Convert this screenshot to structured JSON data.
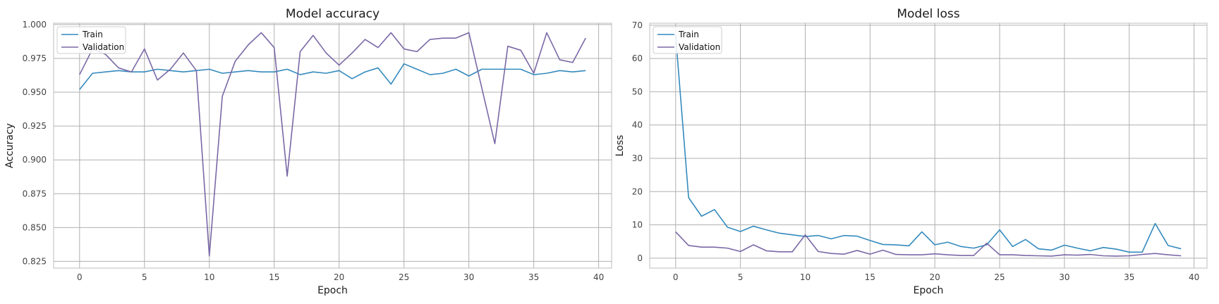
{
  "chart_data": [
    {
      "type": "line",
      "title": "Model accuracy",
      "xlabel": "Epoch",
      "ylabel": "Accuracy",
      "xlim": [
        -2,
        41
      ],
      "ylim": [
        0.82,
        1.001
      ],
      "xticks": [
        0,
        5,
        10,
        15,
        20,
        25,
        30,
        35,
        40
      ],
      "xtick_labels": [
        "0",
        "5",
        "10",
        "15",
        "20",
        "25",
        "30",
        "35",
        "40"
      ],
      "yticks": [
        0.825,
        0.85,
        0.875,
        0.9,
        0.925,
        0.95,
        0.975,
        1.0
      ],
      "ytick_labels": [
        "0.825",
        "0.850",
        "0.875",
        "0.900",
        "0.925",
        "0.950",
        "0.975",
        "1.000"
      ],
      "grid": true,
      "legend_position": "top-left",
      "series": [
        {
          "name": "Train",
          "color": "#348abd",
          "x": [
            0,
            1,
            2,
            3,
            4,
            5,
            6,
            7,
            8,
            9,
            10,
            11,
            12,
            13,
            14,
            15,
            16,
            17,
            18,
            19,
            20,
            21,
            22,
            23,
            24,
            25,
            26,
            27,
            28,
            29,
            30,
            31,
            32,
            33,
            34,
            35,
            36,
            37,
            38,
            39
          ],
          "values": [
            0.952,
            0.964,
            0.965,
            0.966,
            0.965,
            0.965,
            0.967,
            0.966,
            0.965,
            0.966,
            0.967,
            0.964,
            0.965,
            0.966,
            0.965,
            0.965,
            0.967,
            0.963,
            0.965,
            0.964,
            0.966,
            0.96,
            0.965,
            0.968,
            0.956,
            0.971,
            0.967,
            0.963,
            0.964,
            0.967,
            0.962,
            0.967,
            0.967,
            0.967,
            0.967,
            0.963,
            0.964,
            0.966,
            0.965,
            0.966
          ]
        },
        {
          "name": "Validation",
          "color": "#7a68a6",
          "x": [
            0,
            1,
            2,
            3,
            4,
            5,
            6,
            7,
            8,
            9,
            10,
            11,
            12,
            13,
            14,
            15,
            16,
            17,
            18,
            19,
            20,
            21,
            22,
            23,
            24,
            25,
            26,
            27,
            28,
            29,
            30,
            31,
            32,
            33,
            34,
            35,
            36,
            37,
            38,
            39
          ],
          "values": [
            0.963,
            0.982,
            0.978,
            0.968,
            0.965,
            0.982,
            0.959,
            0.967,
            0.979,
            0.966,
            0.829,
            0.947,
            0.973,
            0.985,
            0.994,
            0.983,
            0.888,
            0.98,
            0.992,
            0.979,
            0.97,
            0.979,
            0.989,
            0.983,
            0.994,
            0.982,
            0.98,
            0.989,
            0.99,
            0.99,
            0.994,
            0.953,
            0.912,
            0.984,
            0.981,
            0.964,
            0.994,
            0.974,
            0.972,
            0.99
          ]
        }
      ]
    },
    {
      "type": "line",
      "title": "Model loss",
      "xlabel": "Epoch",
      "ylabel": "Loss",
      "xlim": [
        -2,
        41
      ],
      "ylim": [
        -3,
        70.6
      ],
      "xticks": [
        0,
        5,
        10,
        15,
        20,
        25,
        30,
        35,
        40
      ],
      "xtick_labels": [
        "0",
        "5",
        "10",
        "15",
        "20",
        "25",
        "30",
        "35",
        "40"
      ],
      "yticks": [
        0,
        10,
        20,
        30,
        40,
        50,
        60,
        70
      ],
      "ytick_labels": [
        "0",
        "10",
        "20",
        "30",
        "40",
        "50",
        "60",
        "70"
      ],
      "grid": true,
      "legend_position": "top-left",
      "series": [
        {
          "name": "Train",
          "color": "#348abd",
          "x": [
            0,
            1,
            2,
            3,
            4,
            5,
            6,
            7,
            8,
            9,
            10,
            11,
            12,
            13,
            14,
            15,
            16,
            17,
            18,
            19,
            20,
            21,
            22,
            23,
            24,
            25,
            26,
            27,
            28,
            29,
            30,
            31,
            32,
            33,
            34,
            35,
            36,
            37,
            38,
            39
          ],
          "values": [
            67.0,
            18.2,
            12.6,
            14.6,
            9.3,
            8.0,
            9.6,
            8.5,
            7.5,
            7.0,
            6.5,
            6.8,
            5.8,
            6.8,
            6.6,
            5.3,
            4.1,
            4.0,
            3.7,
            7.9,
            4.0,
            4.8,
            3.5,
            3.0,
            4.0,
            8.5,
            3.5,
            5.6,
            2.8,
            2.4,
            3.9,
            3.0,
            2.2,
            3.2,
            2.7,
            1.8,
            1.8,
            10.4,
            3.8,
            2.8
          ]
        },
        {
          "name": "Validation",
          "color": "#7a68a6",
          "x": [
            0,
            1,
            2,
            3,
            4,
            5,
            6,
            7,
            8,
            9,
            10,
            11,
            12,
            13,
            14,
            15,
            16,
            17,
            18,
            19,
            20,
            21,
            22,
            23,
            24,
            25,
            26,
            27,
            28,
            29,
            30,
            31,
            32,
            33,
            34,
            35,
            36,
            37,
            38,
            39
          ],
          "values": [
            7.9,
            3.8,
            3.3,
            3.3,
            3.0,
            2.0,
            4.0,
            2.2,
            1.9,
            1.9,
            7.0,
            2.0,
            1.4,
            1.2,
            2.3,
            1.2,
            2.4,
            1.1,
            1.0,
            1.0,
            1.3,
            1.0,
            0.8,
            0.8,
            4.5,
            1.0,
            1.0,
            0.8,
            0.7,
            0.6,
            1.0,
            0.9,
            1.1,
            0.7,
            0.6,
            0.7,
            1.1,
            1.4,
            1.0,
            0.7
          ]
        }
      ]
    }
  ]
}
